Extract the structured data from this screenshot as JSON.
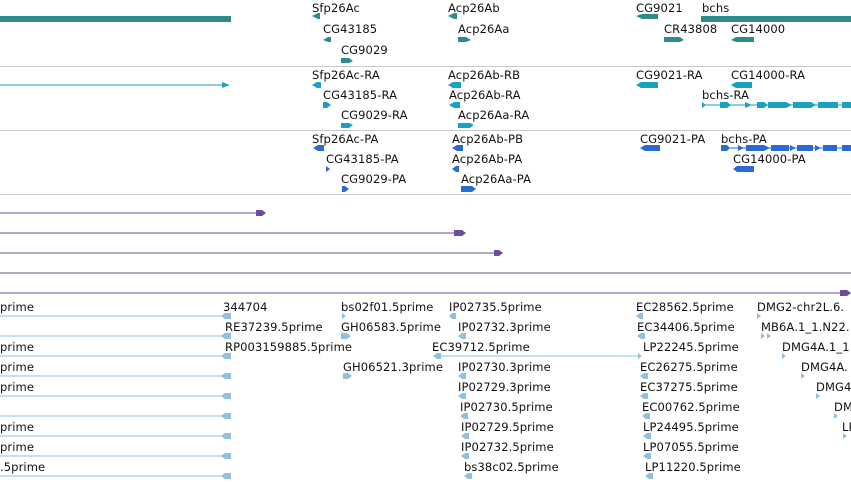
{
  "colors": {
    "gene": "#2e8b8b",
    "transcript_rna": "#1aa0c0",
    "transcript_protein": "#2a6bd1",
    "contig": "#6a4ca0",
    "est": "#8fc0e0",
    "separator": "#c8c8c8"
  },
  "icons": {
    "strand_forward": "arrow-right-icon",
    "strand_reverse": "arrow-left-icon"
  },
  "tracks": {
    "genes": {
      "labels": [
        {
          "id": "sfp26ac",
          "text": "Sfp26Ac",
          "strand": "-"
        },
        {
          "id": "acp26ab",
          "text": "Acp26Ab",
          "strand": "-"
        },
        {
          "id": "cg9021",
          "text": "CG9021",
          "strand": "-"
        },
        {
          "id": "bchs",
          "text": "bchs",
          "strand": "+"
        },
        {
          "id": "cg43185",
          "text": "CG43185",
          "strand": "-"
        },
        {
          "id": "acp26aa",
          "text": "Acp26Aa",
          "strand": "+"
        },
        {
          "id": "cr43808",
          "text": "CR43808",
          "strand": "+"
        },
        {
          "id": "cg14000",
          "text": "CG14000",
          "strand": "-"
        },
        {
          "id": "cg9029",
          "text": "CG9029",
          "strand": "+"
        }
      ]
    },
    "transcripts_rna": {
      "labels": [
        {
          "id": "sfp26ac-ra",
          "text": "Sfp26Ac-RA"
        },
        {
          "id": "acp26ab-rb",
          "text": "Acp26Ab-RB"
        },
        {
          "id": "cg9021-ra",
          "text": "CG9021-RA"
        },
        {
          "id": "cg14000-ra",
          "text": "CG14000-RA"
        },
        {
          "id": "cg43185-ra",
          "text": "CG43185-RA"
        },
        {
          "id": "acp26ab-ra",
          "text": "Acp26Ab-RA"
        },
        {
          "id": "bchs-ra",
          "text": "bchs-RA"
        },
        {
          "id": "cg9029-ra",
          "text": "CG9029-RA"
        },
        {
          "id": "acp26aa-ra",
          "text": "Acp26Aa-RA"
        }
      ]
    },
    "transcripts_protein": {
      "labels": [
        {
          "id": "sfp26ac-pa",
          "text": "Sfp26Ac-PA"
        },
        {
          "id": "acp26ab-pb",
          "text": "Acp26Ab-PB"
        },
        {
          "id": "cg9021-pa",
          "text": "CG9021-PA"
        },
        {
          "id": "bchs-pa",
          "text": "bchs-PA"
        },
        {
          "id": "cg43185-pa",
          "text": "CG43185-PA"
        },
        {
          "id": "acp26ab-pa",
          "text": "Acp26Ab-PA"
        },
        {
          "id": "cg14000-pa",
          "text": "CG14000-PA"
        },
        {
          "id": "cg9029-pa",
          "text": "CG9029-PA"
        },
        {
          "id": "acp26aa-pa",
          "text": "Acp26Aa-PA"
        }
      ]
    },
    "ests": {
      "labels": [
        {
          "id": "e1",
          "text": "prime"
        },
        {
          "id": "e2",
          "text": "344704"
        },
        {
          "id": "e3",
          "text": "bs02f01.5prime"
        },
        {
          "id": "e4",
          "text": "IP02735.5prime"
        },
        {
          "id": "e5",
          "text": "EC28562.5prime"
        },
        {
          "id": "e6",
          "text": "DMG2-chr2L.6."
        },
        {
          "id": "e7",
          "text": "RE37239.5prime"
        },
        {
          "id": "e8",
          "text": "GH06583.5prime"
        },
        {
          "id": "e9",
          "text": "IP02732.3prime"
        },
        {
          "id": "e10",
          "text": "EC34406.5prime"
        },
        {
          "id": "e11",
          "text": "MB6A.1_1.N22."
        },
        {
          "id": "e12",
          "text": "prime"
        },
        {
          "id": "e13",
          "text": "RP003159885.5prime"
        },
        {
          "id": "e14",
          "text": "EC39712.5prime"
        },
        {
          "id": "e15",
          "text": "LP22245.5prime"
        },
        {
          "id": "e16",
          "text": "DMG4A.1_1"
        },
        {
          "id": "e17",
          "text": "prime"
        },
        {
          "id": "e18",
          "text": "GH06521.3prime"
        },
        {
          "id": "e19",
          "text": "IP02730.3prime"
        },
        {
          "id": "e20",
          "text": "EC26275.5prime"
        },
        {
          "id": "e21",
          "text": "DMG4A."
        },
        {
          "id": "e22",
          "text": "prime"
        },
        {
          "id": "e23",
          "text": "IP02729.3prime"
        },
        {
          "id": "e24",
          "text": "EC37275.5prime"
        },
        {
          "id": "e25",
          "text": "DMG4"
        },
        {
          "id": "e26",
          "text": "IP02730.5prime"
        },
        {
          "id": "e27",
          "text": "EC00762.5prime"
        },
        {
          "id": "e28",
          "text": "DM"
        },
        {
          "id": "e29",
          "text": "prime"
        },
        {
          "id": "e30",
          "text": "IP02729.5prime"
        },
        {
          "id": "e31",
          "text": "LP24495.5prime"
        },
        {
          "id": "e32",
          "text": "LP"
        },
        {
          "id": "e33",
          "text": "prime"
        },
        {
          "id": "e34",
          "text": "IP02732.5prime"
        },
        {
          "id": "e35",
          "text": "LP07055.5prime"
        },
        {
          "id": "e36",
          "text": ".5prime"
        },
        {
          "id": "e37",
          "text": "bs38c02.5prime"
        },
        {
          "id": "e38",
          "text": "LP11220.5prime"
        }
      ]
    }
  }
}
